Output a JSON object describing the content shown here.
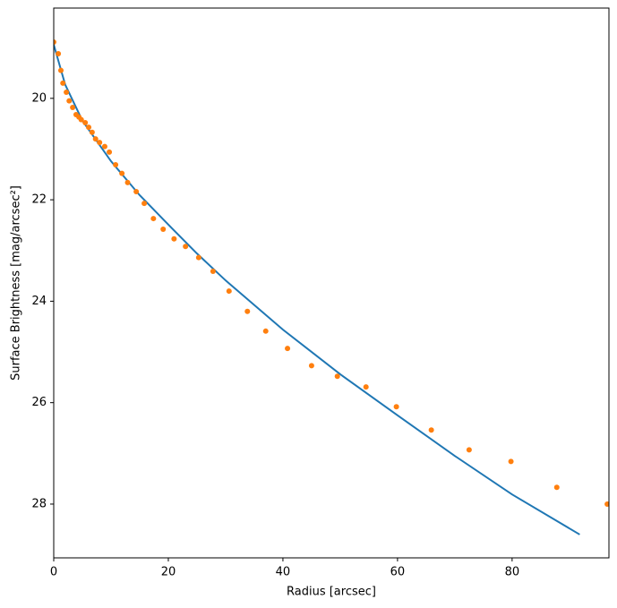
{
  "chart_data": {
    "type": "line-scatter",
    "x_label": "Radius [arcsec]",
    "y_label": "Surface Brightness [mag/arcsec²]",
    "xlim": [
      0,
      96.9
    ],
    "xticks": [
      0,
      20,
      40,
      60,
      80
    ],
    "ylim": [
      18.22,
      29.06
    ],
    "y_inverted": true,
    "yticks": [
      20,
      22,
      24,
      26,
      28
    ],
    "series": [
      {
        "type": "line",
        "color": "#1f77b4",
        "x": [
          0,
          2,
          5,
          10,
          15,
          20,
          25,
          30,
          40,
          50,
          60,
          70,
          80,
          91.8
        ],
        "values": [
          18.94,
          19.73,
          20.44,
          21.24,
          21.91,
          22.49,
          23.06,
          23.59,
          24.56,
          25.44,
          26.25,
          27.05,
          27.81,
          28.6
        ]
      },
      {
        "type": "scatter",
        "color": "#ff7f0e",
        "x": [
          0,
          0.8,
          1.25,
          1.6,
          2.2,
          2.7,
          3.3,
          3.9,
          4.4,
          4.8,
          5.5,
          6.1,
          6.7,
          7.3,
          8.0,
          8.9,
          9.7,
          10.8,
          11.9,
          12.9,
          14.4,
          15.8,
          17.4,
          19.1,
          21.0,
          23.0,
          25.3,
          27.8,
          30.6,
          33.8,
          37.0,
          40.8,
          45.0,
          49.5,
          54.5,
          59.8,
          65.9,
          72.5,
          79.8,
          87.8,
          96.6
        ],
        "values": [
          18.89,
          19.12,
          19.45,
          19.7,
          19.88,
          20.05,
          20.18,
          20.32,
          20.37,
          20.42,
          20.48,
          20.57,
          20.67,
          20.8,
          20.87,
          20.95,
          21.06,
          21.31,
          21.48,
          21.66,
          21.84,
          22.07,
          22.37,
          22.58,
          22.77,
          22.92,
          23.14,
          23.41,
          23.8,
          24.2,
          24.59,
          24.93,
          25.27,
          25.48,
          25.69,
          26.08,
          26.54,
          26.93,
          27.16,
          27.67,
          28.0
        ]
      }
    ]
  }
}
